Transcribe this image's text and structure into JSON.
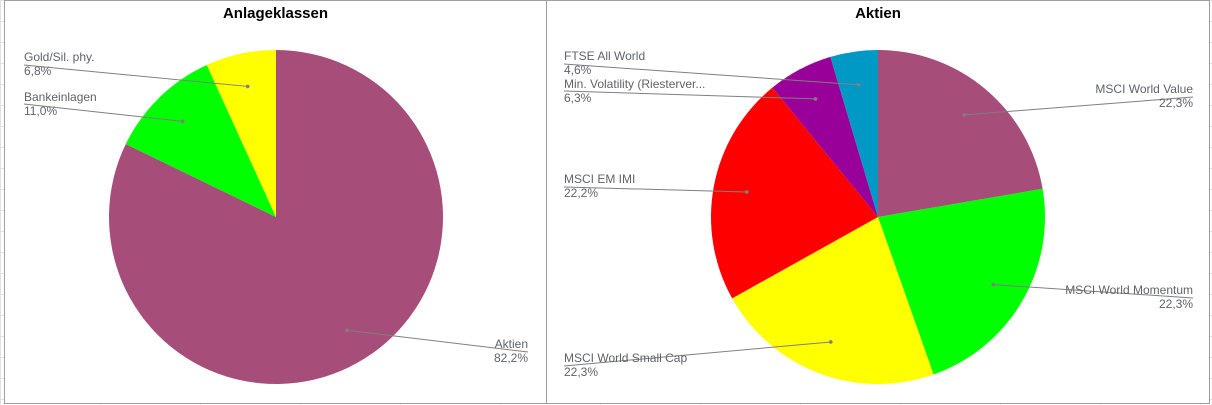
{
  "chart_data": [
    {
      "type": "pie",
      "title": "Anlageklassen",
      "slices": [
        {
          "label": "Aktien",
          "value": 82.2,
          "display": "82,2%",
          "color": "#a64d79"
        },
        {
          "label": "Bankeinlagen",
          "value": 11.0,
          "display": "11,0%",
          "color": "#00ff00"
        },
        {
          "label": "Gold/Sil. phy.",
          "value": 6.8,
          "display": "6,8%",
          "color": "#ffff00"
        }
      ]
    },
    {
      "type": "pie",
      "title": "Aktien",
      "slices": [
        {
          "label": "MSCI World Value",
          "value": 22.3,
          "display": "22,3%",
          "color": "#a64d79"
        },
        {
          "label": "MSCI World Momentum",
          "value": 22.3,
          "display": "22,3%",
          "color": "#00ff00"
        },
        {
          "label": "MSCI World Small Cap",
          "value": 22.3,
          "display": "22,3%",
          "color": "#ffff00"
        },
        {
          "label": "MSCI EM IMI",
          "value": 22.2,
          "display": "22,2%",
          "color": "#ff0000"
        },
        {
          "label": "Min. Volatility (Riesterver...",
          "value": 6.3,
          "display": "6,3%",
          "color": "#990099"
        },
        {
          "label": "FTSE All World",
          "value": 4.6,
          "display": "4,6%",
          "color": "#0099c6"
        }
      ]
    }
  ]
}
